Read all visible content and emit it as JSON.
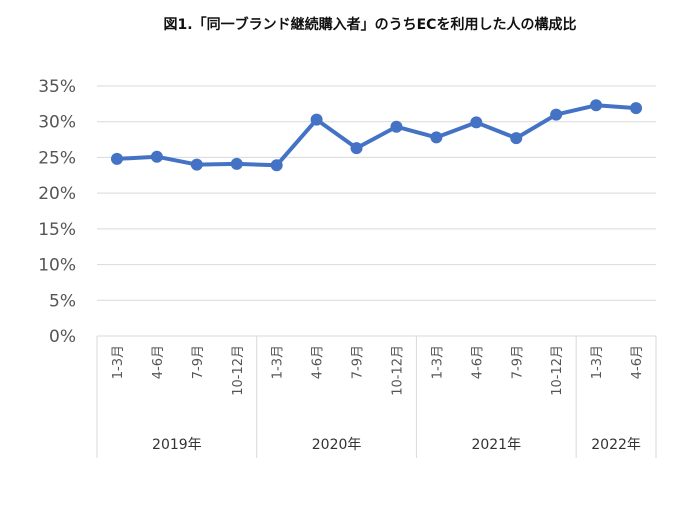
{
  "chart_data": {
    "type": "line",
    "title": "図1.「同一ブランド継続購入者」のうちECを利用した人の構成比",
    "ylabel": "",
    "xlabel": "",
    "ylim": [
      0,
      35
    ],
    "y_ticks": [
      "0%",
      "5%",
      "10%",
      "15%",
      "20%",
      "25%",
      "30%",
      "35%"
    ],
    "grid": true,
    "legend": "none",
    "color": "#4472c4",
    "categories": [
      "1-3月",
      "4-6月",
      "7-9月",
      "10-12月",
      "1-3月",
      "4-6月",
      "7-9月",
      "10-12月",
      "1-3月",
      "4-6月",
      "7-9月",
      "10-12月",
      "1-3月",
      "4-6月"
    ],
    "groups": [
      {
        "label": "2019年",
        "count": 4
      },
      {
        "label": "2020年",
        "count": 4
      },
      {
        "label": "2021年",
        "count": 4
      },
      {
        "label": "2022年",
        "count": 2
      }
    ],
    "values": [
      24.8,
      25.1,
      24.0,
      24.1,
      23.9,
      30.3,
      26.3,
      29.3,
      27.8,
      29.9,
      27.7,
      31.0,
      32.3,
      31.9
    ]
  }
}
